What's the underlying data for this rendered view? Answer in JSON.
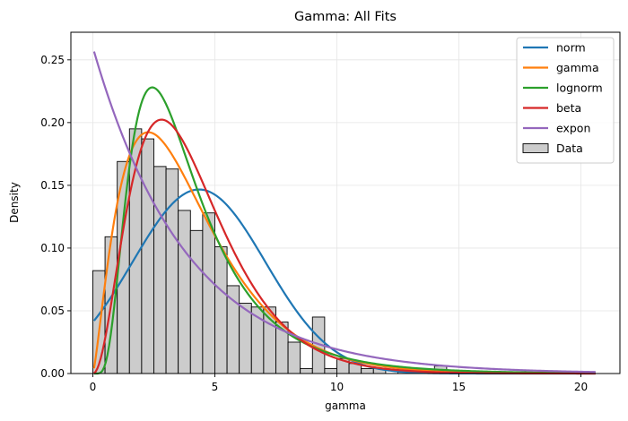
{
  "chart_data": {
    "type": "histogram",
    "title": "Gamma: All Fits",
    "xlabel": "gamma",
    "ylabel": "Density",
    "xlim": [
      -0.9,
      21.6
    ],
    "ylim": [
      0,
      0.272
    ],
    "xticks": [
      0,
      5,
      10,
      15,
      20
    ],
    "yticks": [
      0.0,
      0.05,
      0.1,
      0.15,
      0.2,
      0.25
    ],
    "xtick_labels": [
      "0",
      "5",
      "10",
      "15",
      "20"
    ],
    "ytick_labels": [
      "0.00",
      "0.05",
      "0.10",
      "0.15",
      "0.20",
      "0.25"
    ],
    "grid": true,
    "legend_position": "top-right",
    "histogram": {
      "name": "Data",
      "color": "#cccccc",
      "edgecolor": "#000000",
      "bin_width": 0.5,
      "bins": [
        {
          "x0": 0.0,
          "height": 0.082
        },
        {
          "x0": 0.5,
          "height": 0.109
        },
        {
          "x0": 1.0,
          "height": 0.169
        },
        {
          "x0": 1.5,
          "height": 0.195
        },
        {
          "x0": 2.0,
          "height": 0.187
        },
        {
          "x0": 2.5,
          "height": 0.165
        },
        {
          "x0": 3.0,
          "height": 0.163
        },
        {
          "x0": 3.5,
          "height": 0.13
        },
        {
          "x0": 4.0,
          "height": 0.114
        },
        {
          "x0": 4.5,
          "height": 0.128
        },
        {
          "x0": 5.0,
          "height": 0.101
        },
        {
          "x0": 5.5,
          "height": 0.07
        },
        {
          "x0": 6.0,
          "height": 0.056
        },
        {
          "x0": 6.5,
          "height": 0.053
        },
        {
          "x0": 7.0,
          "height": 0.053
        },
        {
          "x0": 7.5,
          "height": 0.041
        },
        {
          "x0": 8.0,
          "height": 0.025
        },
        {
          "x0": 8.5,
          "height": 0.004
        },
        {
          "x0": 9.0,
          "height": 0.045
        },
        {
          "x0": 9.5,
          "height": 0.004
        },
        {
          "x0": 10.0,
          "height": 0.012
        },
        {
          "x0": 10.5,
          "height": 0.008
        },
        {
          "x0": 11.0,
          "height": 0.004
        },
        {
          "x0": 11.5,
          "height": 0.004
        },
        {
          "x0": 12.0,
          "height": 0.0
        },
        {
          "x0": 12.5,
          "height": 0.004
        },
        {
          "x0": 13.0,
          "height": 0.0
        },
        {
          "x0": 13.5,
          "height": 0.0
        },
        {
          "x0": 14.0,
          "height": 0.006
        }
      ]
    },
    "series": [
      {
        "name": "norm",
        "color": "#1f77b4",
        "dist": "norm",
        "params": {
          "mu": 4.35,
          "sigma": 2.72
        }
      },
      {
        "name": "gamma",
        "color": "#ff7f0e",
        "dist": "gamma",
        "params": {
          "k": 2.35,
          "theta": 1.68
        }
      },
      {
        "name": "lognorm",
        "color": "#2ca02c",
        "dist": "lognorm",
        "params": {
          "mu": 1.25,
          "sigma": 0.6
        }
      },
      {
        "name": "beta",
        "color": "#d62728",
        "dist": "gamma",
        "params": {
          "k": 3.2,
          "theta": 1.28
        }
      },
      {
        "name": "expon",
        "color": "#9467bd",
        "dist": "expon",
        "params": {
          "lambda": 0.26
        }
      }
    ],
    "x_range": [
      0.05,
      20.6
    ]
  }
}
